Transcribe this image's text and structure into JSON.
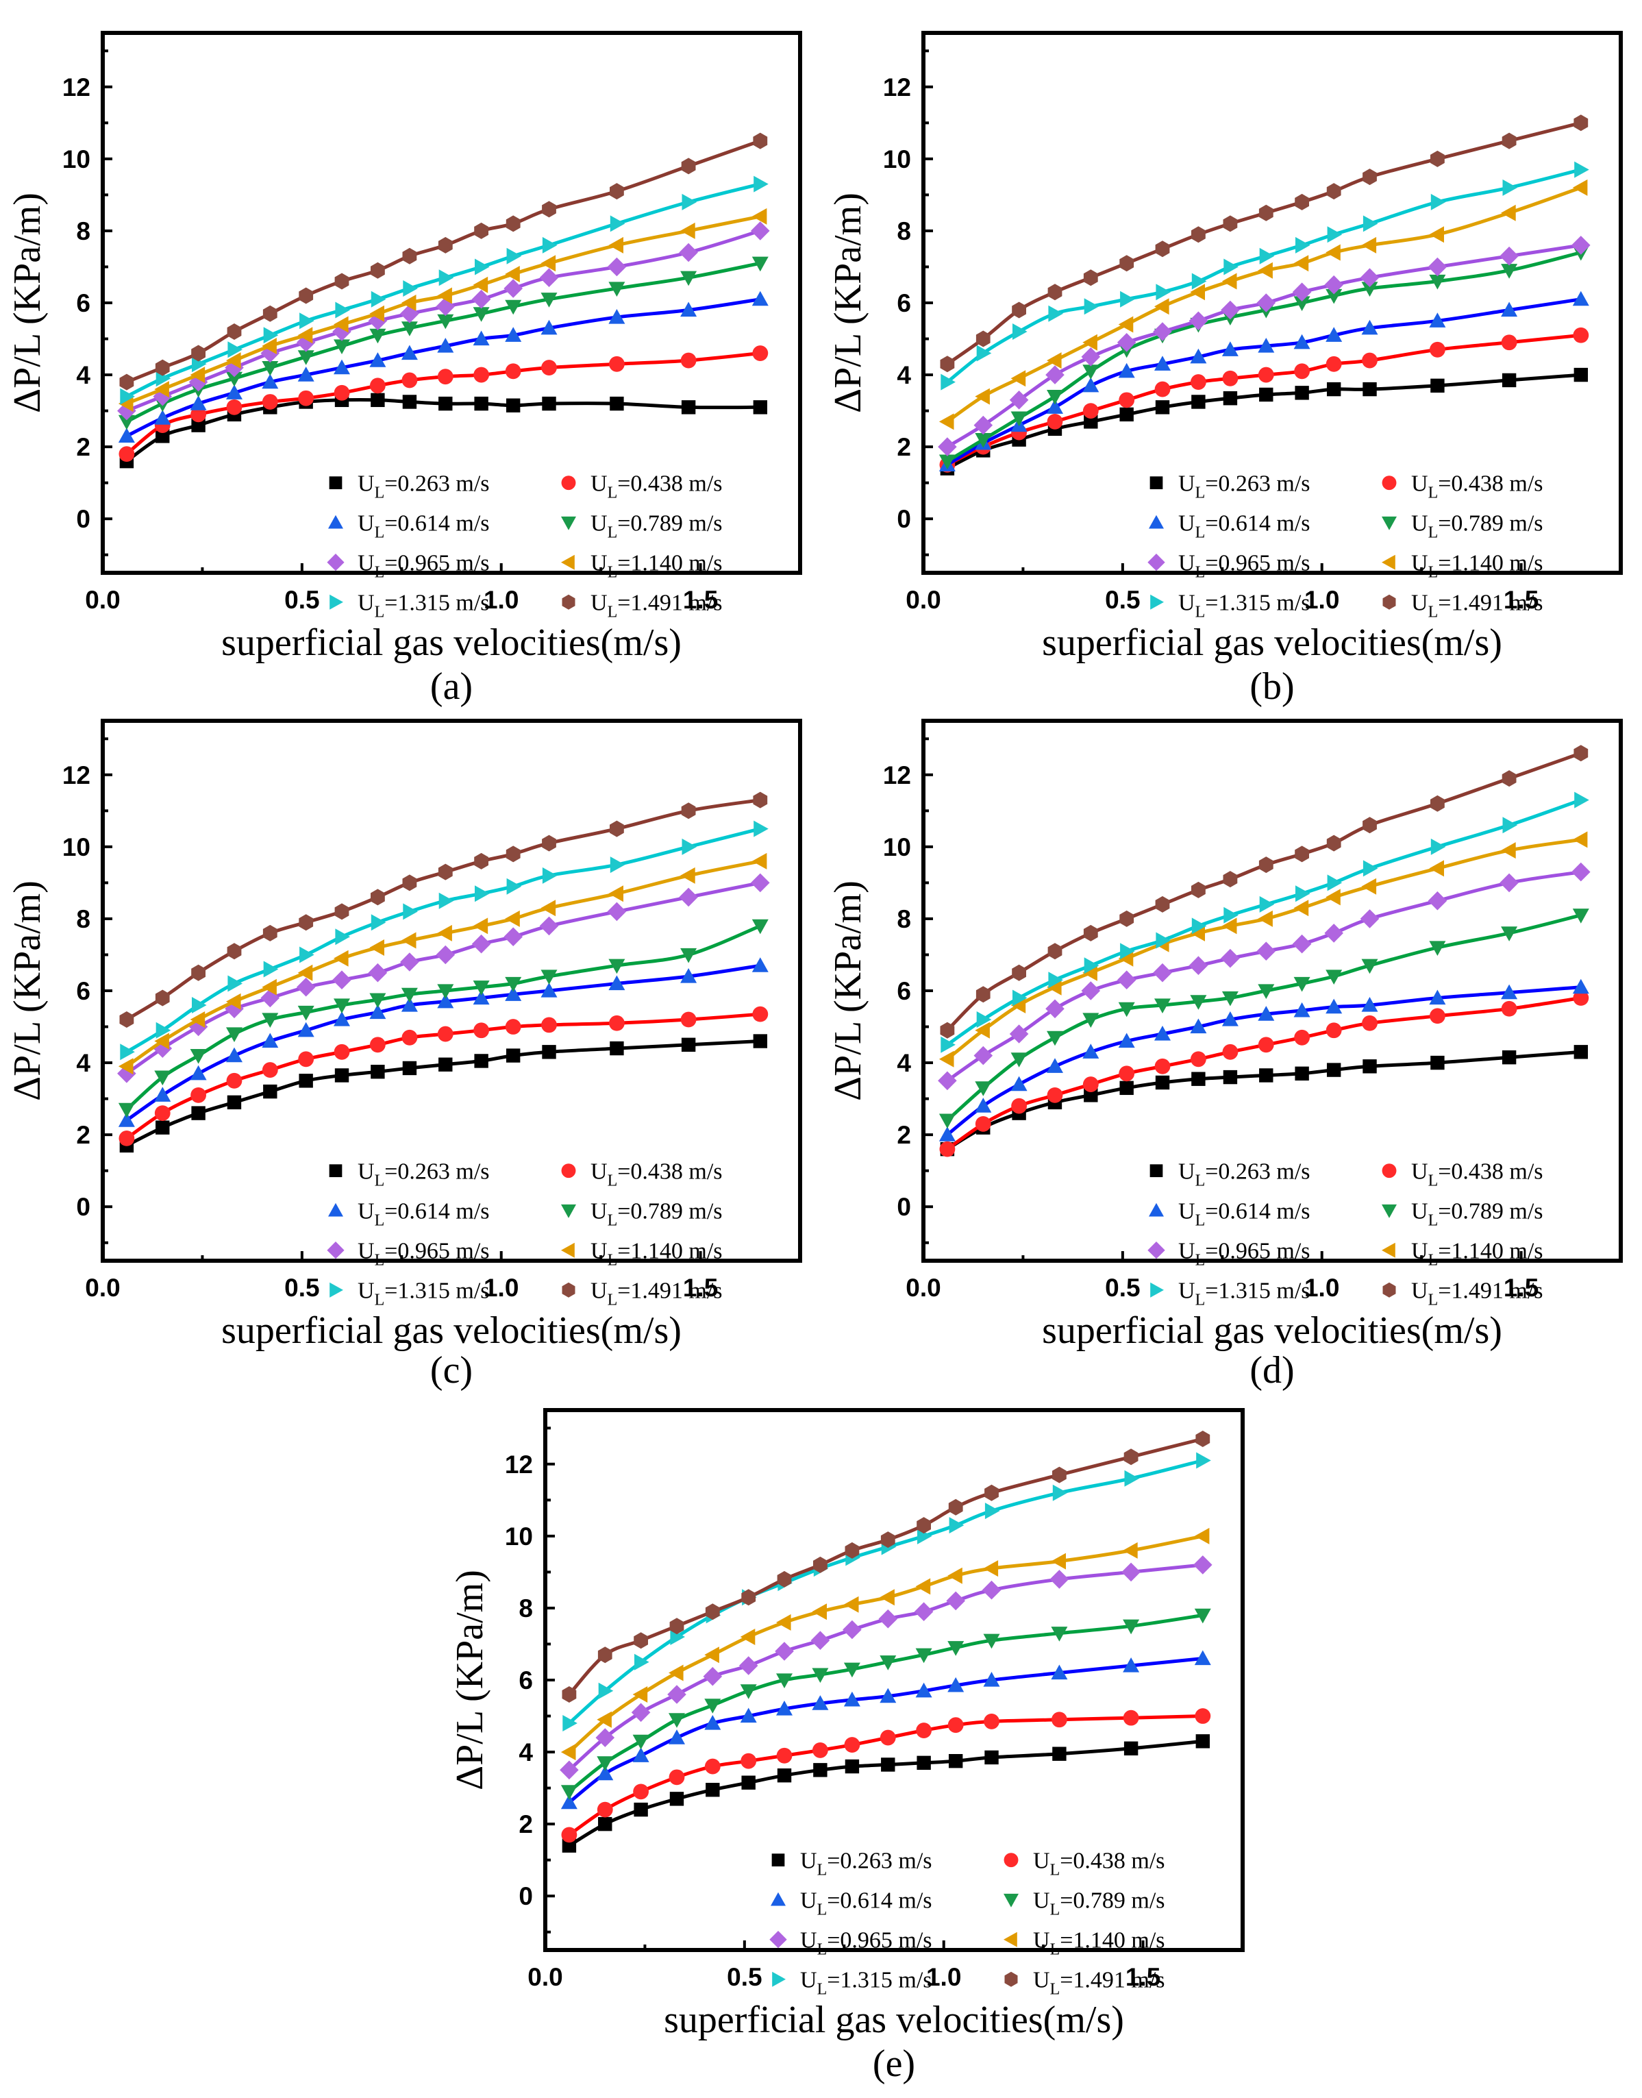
{
  "chart_data": [
    {
      "type": "line",
      "panel_label": "(a)",
      "xlabel": "superficial gas velocities(m/s)",
      "ylabel": "ΔP/L (KPa/m)",
      "xlim": [
        0.0,
        1.75
      ],
      "ylim": [
        -1.5,
        13.5
      ],
      "xticks": [
        "0.0",
        "0.5",
        "1.0",
        "1.5"
      ],
      "yticks": [
        "0",
        "2",
        "4",
        "6",
        "8",
        "10",
        "12"
      ],
      "legend_position": "bottom-right",
      "x": [
        0.06,
        0.15,
        0.24,
        0.33,
        0.42,
        0.51,
        0.6,
        0.69,
        0.77,
        0.86,
        0.95,
        1.03,
        1.12,
        1.29,
        1.47,
        1.65
      ],
      "series": [
        {
          "name": "U_L=0.263 m/s",
          "values": [
            1.6,
            2.3,
            2.6,
            2.9,
            3.1,
            3.25,
            3.3,
            3.3,
            3.25,
            3.2,
            3.2,
            3.15,
            3.2,
            3.2,
            3.1,
            3.1
          ]
        },
        {
          "name": "U_L=0.438 m/s",
          "values": [
            1.8,
            2.6,
            2.9,
            3.1,
            3.25,
            3.35,
            3.5,
            3.7,
            3.85,
            3.95,
            4.0,
            4.1,
            4.2,
            4.3,
            4.4,
            4.6
          ]
        },
        {
          "name": "U_L=0.614 m/s",
          "values": [
            2.3,
            2.8,
            3.2,
            3.5,
            3.8,
            4.0,
            4.2,
            4.4,
            4.6,
            4.8,
            5.0,
            5.1,
            5.3,
            5.6,
            5.8,
            6.1
          ]
        },
        {
          "name": "U_L=0.789 m/s",
          "values": [
            2.7,
            3.2,
            3.6,
            3.9,
            4.2,
            4.5,
            4.8,
            5.1,
            5.3,
            5.5,
            5.7,
            5.9,
            6.1,
            6.4,
            6.7,
            7.1
          ]
        },
        {
          "name": "U_L=0.965 m/s",
          "values": [
            3.0,
            3.4,
            3.8,
            4.2,
            4.6,
            4.9,
            5.2,
            5.5,
            5.7,
            5.9,
            6.1,
            6.4,
            6.7,
            7.0,
            7.4,
            8.0
          ]
        },
        {
          "name": "U_L=1.140 m/s",
          "values": [
            3.2,
            3.6,
            4.0,
            4.4,
            4.8,
            5.1,
            5.4,
            5.7,
            6.0,
            6.2,
            6.5,
            6.8,
            7.1,
            7.6,
            8.0,
            8.4
          ]
        },
        {
          "name": "U_L=1.315 m/s",
          "values": [
            3.4,
            3.9,
            4.3,
            4.7,
            5.1,
            5.5,
            5.8,
            6.1,
            6.4,
            6.7,
            7.0,
            7.3,
            7.6,
            8.2,
            8.8,
            9.3
          ]
        },
        {
          "name": "U_L=1.491 m/s",
          "values": [
            3.8,
            4.2,
            4.6,
            5.2,
            5.7,
            6.2,
            6.6,
            6.9,
            7.3,
            7.6,
            8.0,
            8.2,
            8.6,
            9.1,
            9.8,
            10.5
          ]
        }
      ]
    },
    {
      "type": "line",
      "panel_label": "(b)",
      "xlabel": "superficial gas velocities(m/s)",
      "ylabel": "ΔP/L (KPa/m)",
      "xlim": [
        0.0,
        1.75
      ],
      "ylim": [
        -1.5,
        13.5
      ],
      "xticks": [
        "0.0",
        "0.5",
        "1.0",
        "1.5"
      ],
      "yticks": [
        "0",
        "2",
        "4",
        "6",
        "8",
        "10",
        "12"
      ],
      "legend_position": "bottom-right",
      "x": [
        0.06,
        0.15,
        0.24,
        0.33,
        0.42,
        0.51,
        0.6,
        0.69,
        0.77,
        0.86,
        0.95,
        1.03,
        1.12,
        1.29,
        1.47,
        1.65
      ],
      "series": [
        {
          "name": "U_L=0.263 m/s",
          "values": [
            1.4,
            1.9,
            2.2,
            2.5,
            2.7,
            2.9,
            3.1,
            3.25,
            3.35,
            3.45,
            3.5,
            3.6,
            3.6,
            3.7,
            3.85,
            4.0
          ]
        },
        {
          "name": "U_L=0.438 m/s",
          "values": [
            1.5,
            2.0,
            2.4,
            2.7,
            3.0,
            3.3,
            3.6,
            3.8,
            3.9,
            4.0,
            4.1,
            4.3,
            4.4,
            4.7,
            4.9,
            5.1
          ]
        },
        {
          "name": "U_L=0.614 m/s",
          "values": [
            1.5,
            2.1,
            2.6,
            3.1,
            3.7,
            4.1,
            4.3,
            4.5,
            4.7,
            4.8,
            4.9,
            5.1,
            5.3,
            5.5,
            5.8,
            6.1
          ]
        },
        {
          "name": "U_L=0.789 m/s",
          "values": [
            1.6,
            2.2,
            2.8,
            3.4,
            4.1,
            4.7,
            5.1,
            5.4,
            5.6,
            5.8,
            6.0,
            6.2,
            6.4,
            6.6,
            6.9,
            7.4
          ]
        },
        {
          "name": "U_L=0.965 m/s",
          "values": [
            2.0,
            2.6,
            3.3,
            4.0,
            4.5,
            4.9,
            5.2,
            5.5,
            5.8,
            6.0,
            6.3,
            6.5,
            6.7,
            7.0,
            7.3,
            7.6
          ]
        },
        {
          "name": "U_L=1.140 m/s",
          "values": [
            2.7,
            3.4,
            3.9,
            4.4,
            4.9,
            5.4,
            5.9,
            6.3,
            6.6,
            6.9,
            7.1,
            7.4,
            7.6,
            7.9,
            8.5,
            9.2
          ]
        },
        {
          "name": "U_L=1.315 m/s",
          "values": [
            3.8,
            4.6,
            5.2,
            5.7,
            5.9,
            6.1,
            6.3,
            6.6,
            7.0,
            7.3,
            7.6,
            7.9,
            8.2,
            8.8,
            9.2,
            9.7
          ]
        },
        {
          "name": "U_L=1.491 m/s",
          "values": [
            4.3,
            5.0,
            5.8,
            6.3,
            6.7,
            7.1,
            7.5,
            7.9,
            8.2,
            8.5,
            8.8,
            9.1,
            9.5,
            10.0,
            10.5,
            11.0
          ]
        }
      ]
    },
    {
      "type": "line",
      "panel_label": "(c)",
      "xlabel": "superficial gas velocities(m/s)",
      "ylabel": "ΔP/L (KPa/m)",
      "xlim": [
        0.0,
        1.75
      ],
      "ylim": [
        -1.5,
        13.5
      ],
      "xticks": [
        "0.0",
        "0.5",
        "1.0",
        "1.5"
      ],
      "yticks": [
        "0",
        "2",
        "4",
        "6",
        "8",
        "10",
        "12"
      ],
      "legend_position": "bottom-right",
      "x": [
        0.06,
        0.15,
        0.24,
        0.33,
        0.42,
        0.51,
        0.6,
        0.69,
        0.77,
        0.86,
        0.95,
        1.03,
        1.12,
        1.29,
        1.47,
        1.65
      ],
      "series": [
        {
          "name": "U_L=0.263 m/s",
          "values": [
            1.7,
            2.2,
            2.6,
            2.9,
            3.2,
            3.5,
            3.65,
            3.75,
            3.85,
            3.95,
            4.05,
            4.2,
            4.3,
            4.4,
            4.5,
            4.6
          ]
        },
        {
          "name": "U_L=0.438 m/s",
          "values": [
            1.9,
            2.6,
            3.1,
            3.5,
            3.8,
            4.1,
            4.3,
            4.5,
            4.7,
            4.8,
            4.9,
            5.0,
            5.05,
            5.1,
            5.2,
            5.35
          ]
        },
        {
          "name": "U_L=0.614 m/s",
          "values": [
            2.4,
            3.1,
            3.7,
            4.2,
            4.6,
            4.9,
            5.2,
            5.4,
            5.6,
            5.7,
            5.8,
            5.9,
            6.0,
            6.2,
            6.4,
            6.7
          ]
        },
        {
          "name": "U_L=0.789 m/s",
          "values": [
            2.7,
            3.6,
            4.2,
            4.8,
            5.2,
            5.4,
            5.6,
            5.75,
            5.9,
            6.0,
            6.1,
            6.2,
            6.4,
            6.7,
            7.0,
            7.8
          ]
        },
        {
          "name": "U_L=0.965 m/s",
          "values": [
            3.7,
            4.4,
            5.0,
            5.5,
            5.8,
            6.1,
            6.3,
            6.5,
            6.8,
            7.0,
            7.3,
            7.5,
            7.8,
            8.2,
            8.6,
            9.0
          ]
        },
        {
          "name": "U_L=1.140 m/s",
          "values": [
            3.9,
            4.6,
            5.2,
            5.7,
            6.1,
            6.5,
            6.9,
            7.2,
            7.4,
            7.6,
            7.8,
            8.0,
            8.3,
            8.7,
            9.2,
            9.6
          ]
        },
        {
          "name": "U_L=1.315 m/s",
          "values": [
            4.3,
            4.9,
            5.6,
            6.2,
            6.6,
            7.0,
            7.5,
            7.9,
            8.2,
            8.5,
            8.7,
            8.9,
            9.2,
            9.5,
            10.0,
            10.5
          ]
        },
        {
          "name": "U_L=1.491 m/s",
          "values": [
            5.2,
            5.8,
            6.5,
            7.1,
            7.6,
            7.9,
            8.2,
            8.6,
            9.0,
            9.3,
            9.6,
            9.8,
            10.1,
            10.5,
            11.0,
            11.3
          ]
        }
      ]
    },
    {
      "type": "line",
      "panel_label": "(d)",
      "xlabel": "superficial gas velocities(m/s)",
      "ylabel": "ΔP/L (KPa/m)",
      "xlim": [
        0.0,
        1.75
      ],
      "ylim": [
        -1.5,
        13.5
      ],
      "xticks": [
        "0.0",
        "0.5",
        "1.0",
        "1.5"
      ],
      "yticks": [
        "0",
        "2",
        "4",
        "6",
        "8",
        "10",
        "12"
      ],
      "legend_position": "bottom-right",
      "x": [
        0.06,
        0.15,
        0.24,
        0.33,
        0.42,
        0.51,
        0.6,
        0.69,
        0.77,
        0.86,
        0.95,
        1.03,
        1.12,
        1.29,
        1.47,
        1.65
      ],
      "series": [
        {
          "name": "U_L=0.263 m/s",
          "values": [
            1.6,
            2.2,
            2.6,
            2.9,
            3.1,
            3.3,
            3.45,
            3.55,
            3.6,
            3.65,
            3.7,
            3.8,
            3.9,
            4.0,
            4.15,
            4.3
          ]
        },
        {
          "name": "U_L=0.438 m/s",
          "values": [
            1.6,
            2.3,
            2.8,
            3.1,
            3.4,
            3.7,
            3.9,
            4.1,
            4.3,
            4.5,
            4.7,
            4.9,
            5.1,
            5.3,
            5.5,
            5.8
          ]
        },
        {
          "name": "U_L=0.614 m/s",
          "values": [
            2.0,
            2.8,
            3.4,
            3.9,
            4.3,
            4.6,
            4.8,
            5.0,
            5.2,
            5.35,
            5.45,
            5.55,
            5.6,
            5.8,
            5.95,
            6.1
          ]
        },
        {
          "name": "U_L=0.789 m/s",
          "values": [
            2.4,
            3.3,
            4.1,
            4.7,
            5.2,
            5.5,
            5.6,
            5.7,
            5.8,
            6.0,
            6.2,
            6.4,
            6.7,
            7.2,
            7.6,
            8.1
          ]
        },
        {
          "name": "U_L=0.965 m/s",
          "values": [
            3.5,
            4.2,
            4.8,
            5.5,
            6.0,
            6.3,
            6.5,
            6.7,
            6.9,
            7.1,
            7.3,
            7.6,
            8.0,
            8.5,
            9.0,
            9.3
          ]
        },
        {
          "name": "U_L=1.140 m/s",
          "values": [
            4.1,
            4.9,
            5.6,
            6.1,
            6.5,
            6.9,
            7.3,
            7.6,
            7.8,
            8.0,
            8.3,
            8.6,
            8.9,
            9.4,
            9.9,
            10.2
          ]
        },
        {
          "name": "U_L=1.315 m/s",
          "values": [
            4.5,
            5.2,
            5.8,
            6.3,
            6.7,
            7.1,
            7.4,
            7.8,
            8.1,
            8.4,
            8.7,
            9.0,
            9.4,
            10.0,
            10.6,
            11.3
          ]
        },
        {
          "name": "U_L=1.491 m/s",
          "values": [
            4.9,
            5.9,
            6.5,
            7.1,
            7.6,
            8.0,
            8.4,
            8.8,
            9.1,
            9.5,
            9.8,
            10.1,
            10.6,
            11.2,
            11.9,
            12.6
          ]
        }
      ]
    },
    {
      "type": "line",
      "panel_label": "(e)",
      "xlabel": "superficial gas velocities(m/s)",
      "ylabel": "ΔP/L (KPa/m)",
      "xlim": [
        0.0,
        1.75
      ],
      "ylim": [
        -1.5,
        13.5
      ],
      "xticks": [
        "0.0",
        "0.5",
        "1.0",
        "1.5"
      ],
      "yticks": [
        "0",
        "2",
        "4",
        "6",
        "8",
        "10",
        "12"
      ],
      "legend_position": "bottom-right",
      "x": [
        0.06,
        0.15,
        0.24,
        0.33,
        0.42,
        0.51,
        0.6,
        0.69,
        0.77,
        0.86,
        0.95,
        1.03,
        1.12,
        1.29,
        1.47,
        1.65
      ],
      "series": [
        {
          "name": "U_L=0.263 m/s",
          "values": [
            1.4,
            2.0,
            2.4,
            2.7,
            2.95,
            3.15,
            3.35,
            3.5,
            3.6,
            3.65,
            3.7,
            3.75,
            3.85,
            3.95,
            4.1,
            4.3
          ]
        },
        {
          "name": "U_L=0.438 m/s",
          "values": [
            1.7,
            2.4,
            2.9,
            3.3,
            3.6,
            3.75,
            3.9,
            4.05,
            4.2,
            4.4,
            4.6,
            4.75,
            4.85,
            4.9,
            4.95,
            5.0
          ]
        },
        {
          "name": "U_L=0.614 m/s",
          "values": [
            2.6,
            3.4,
            3.9,
            4.4,
            4.8,
            5.0,
            5.2,
            5.35,
            5.45,
            5.55,
            5.7,
            5.85,
            6.0,
            6.2,
            6.4,
            6.6
          ]
        },
        {
          "name": "U_L=0.789 m/s",
          "values": [
            2.9,
            3.7,
            4.3,
            4.9,
            5.3,
            5.7,
            6.0,
            6.15,
            6.3,
            6.5,
            6.7,
            6.9,
            7.1,
            7.3,
            7.5,
            7.8
          ]
        },
        {
          "name": "U_L=0.965 m/s",
          "values": [
            3.5,
            4.4,
            5.1,
            5.6,
            6.1,
            6.4,
            6.8,
            7.1,
            7.4,
            7.7,
            7.9,
            8.2,
            8.5,
            8.8,
            9.0,
            9.2
          ]
        },
        {
          "name": "U_L=1.140 m/s",
          "values": [
            4.0,
            4.9,
            5.6,
            6.2,
            6.7,
            7.2,
            7.6,
            7.9,
            8.1,
            8.3,
            8.6,
            8.9,
            9.1,
            9.3,
            9.6,
            10.0
          ]
        },
        {
          "name": "U_L=1.315 m/s",
          "values": [
            4.8,
            5.7,
            6.5,
            7.2,
            7.8,
            8.3,
            8.7,
            9.1,
            9.4,
            9.7,
            10.0,
            10.3,
            10.7,
            11.2,
            11.6,
            12.1
          ]
        },
        {
          "name": "U_L=1.491 m/s",
          "values": [
            5.6,
            6.7,
            7.1,
            7.5,
            7.9,
            8.3,
            8.8,
            9.2,
            9.6,
            9.9,
            10.3,
            10.8,
            11.2,
            11.7,
            12.2,
            12.7
          ]
        }
      ]
    }
  ],
  "legend_entries": [
    {
      "prefix": "U",
      "subscript": "L",
      "value": "=0.263 m/s"
    },
    {
      "prefix": "U",
      "subscript": "L",
      "value": "=0.438 m/s"
    },
    {
      "prefix": "U",
      "subscript": "L",
      "value": "=0.614 m/s"
    },
    {
      "prefix": "U",
      "subscript": "L",
      "value": "=0.789 m/s"
    },
    {
      "prefix": "U",
      "subscript": "L",
      "value": "=0.965 m/s"
    },
    {
      "prefix": "U",
      "subscript": "L",
      "value": "=1.140 m/s"
    },
    {
      "prefix": "U",
      "subscript": "L",
      "value": "=1.315 m/s"
    },
    {
      "prefix": "U",
      "subscript": "L",
      "value": "=1.491 m/s"
    }
  ],
  "series_style": [
    {
      "color": "#000000",
      "marker": "square"
    },
    {
      "color": "#ff2a2a",
      "marker": "circle"
    },
    {
      "color": "#1a5fe6",
      "marker": "triangle-up"
    },
    {
      "color": "#1a9a4a",
      "marker": "triangle-down"
    },
    {
      "color": "#b065e0",
      "marker": "diamond"
    },
    {
      "color": "#e19a00",
      "marker": "triangle-left"
    },
    {
      "color": "#1ec8cc",
      "marker": "triangle-right"
    },
    {
      "color": "#8a4a3e",
      "marker": "hexagon"
    }
  ],
  "line_colors": [
    "#000000",
    "#ff0000",
    "#0000ff",
    "#00a040",
    "#a050e0",
    "#e0a000",
    "#00c8d0",
    "#8a3a30"
  ]
}
